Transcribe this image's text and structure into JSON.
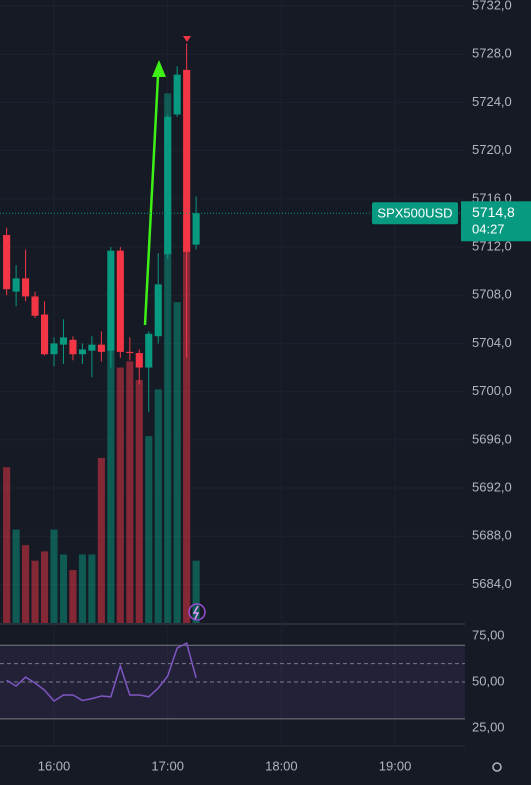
{
  "chart_data": {
    "type": "candlestick",
    "symbol": "SPX500USD",
    "last_price": {
      "value": 5714.8,
      "label": "5714,8"
    },
    "countdown": "04:27",
    "x": [
      15.5833,
      15.6667,
      15.75,
      15.8333,
      15.9167,
      16,
      16.0833,
      16.1667,
      16.25,
      16.3333,
      16.4167,
      16.5,
      16.5833,
      16.6667,
      16.75,
      16.8333,
      16.9167,
      17,
      17.0833,
      17.1667,
      17.25
    ],
    "open": [
      5713.0,
      5708.3,
      5709.4,
      5707.9,
      5706.4,
      5703.1,
      5703.9,
      5704.3,
      5703.1,
      5703.4,
      5703.9,
      5703.4,
      5711.7,
      5703.3,
      5703.2,
      5702.0,
      5704.6,
      5711.4,
      5723.0,
      5726.7,
      5712.2
    ],
    "high": [
      5713.6,
      5710.5,
      5711.8,
      5708.3,
      5707.5,
      5704.5,
      5706.0,
      5704.6,
      5704.0,
      5704.6,
      5705.0,
      5712.0,
      5712.0,
      5704.5,
      5703.5,
      5705.0,
      5711.5,
      5723.0,
      5727.0,
      5728.9,
      5716.2
    ],
    "low": [
      5708.0,
      5707.1,
      5707.5,
      5706.1,
      5703.0,
      5702.1,
      5702.3,
      5702.6,
      5702.3,
      5701.2,
      5702.5,
      5702.0,
      5702.8,
      5702.6,
      5700.6,
      5698.3,
      5704.0,
      5711.0,
      5722.8,
      5702.8,
      5711.8
    ],
    "close": [
      5708.5,
      5709.4,
      5707.9,
      5706.3,
      5703.1,
      5704.0,
      5704.5,
      5703.1,
      5703.5,
      5703.9,
      5703.3,
      5711.7,
      5703.3,
      5703.2,
      5702.0,
      5704.8,
      5708.9,
      5722.8,
      5726.3,
      5711.6,
      5714.8
    ],
    "volume": [
      50,
      30,
      25,
      20,
      23,
      30,
      22,
      17,
      22,
      22,
      53,
      108,
      82,
      84,
      78,
      60,
      75,
      170,
      103,
      130,
      20
    ],
    "volume_lim": [
      0,
      200
    ],
    "rsi": [
      51,
      47.8,
      52.7,
      49.5,
      45.6,
      39.7,
      43,
      43,
      40,
      41,
      42.4,
      42,
      58.7,
      43,
      43,
      42,
      46.7,
      53.3,
      68.5,
      71.2,
      52.2
    ],
    "rsi_color": "#7e57c2",
    "rsi_band": [
      30,
      70
    ],
    "rsi_levels": [
      60,
      50
    ],
    "rsi_lim": [
      15.8,
      81
    ],
    "rsi_ticks": [
      {
        "value": 75,
        "label": "75,00"
      },
      {
        "value": 50,
        "label": "50,00"
      },
      {
        "value": 25,
        "label": "25,00"
      }
    ],
    "up_color": "#089981",
    "down_color": "#f23645",
    "xlim": [
      15.525,
      19.615
    ],
    "xticks": [
      {
        "value": 16,
        "label": "16:00"
      },
      {
        "value": 17,
        "label": "17:00"
      },
      {
        "value": 18,
        "label": "18:00"
      },
      {
        "value": 19,
        "label": "19:00"
      }
    ],
    "ylim": [
      5680.8,
      5732.5
    ],
    "yticks": [
      {
        "value": 5732,
        "label": "5732,0"
      },
      {
        "value": 5728,
        "label": "5728,0"
      },
      {
        "value": 5724,
        "label": "5724,0"
      },
      {
        "value": 5720,
        "label": "5720,0"
      },
      {
        "value": 5716,
        "label": "5716,0"
      },
      {
        "value": 5712,
        "label": "5712,0"
      },
      {
        "value": 5708,
        "label": "5708,0"
      },
      {
        "value": 5704,
        "label": "5704,0"
      },
      {
        "value": 5700,
        "label": "5700,0"
      },
      {
        "value": 5696,
        "label": "5696,0"
      },
      {
        "value": 5692,
        "label": "5692,0"
      },
      {
        "value": 5688,
        "label": "5688,0"
      },
      {
        "value": 5684,
        "label": "5684,0"
      }
    ]
  }
}
